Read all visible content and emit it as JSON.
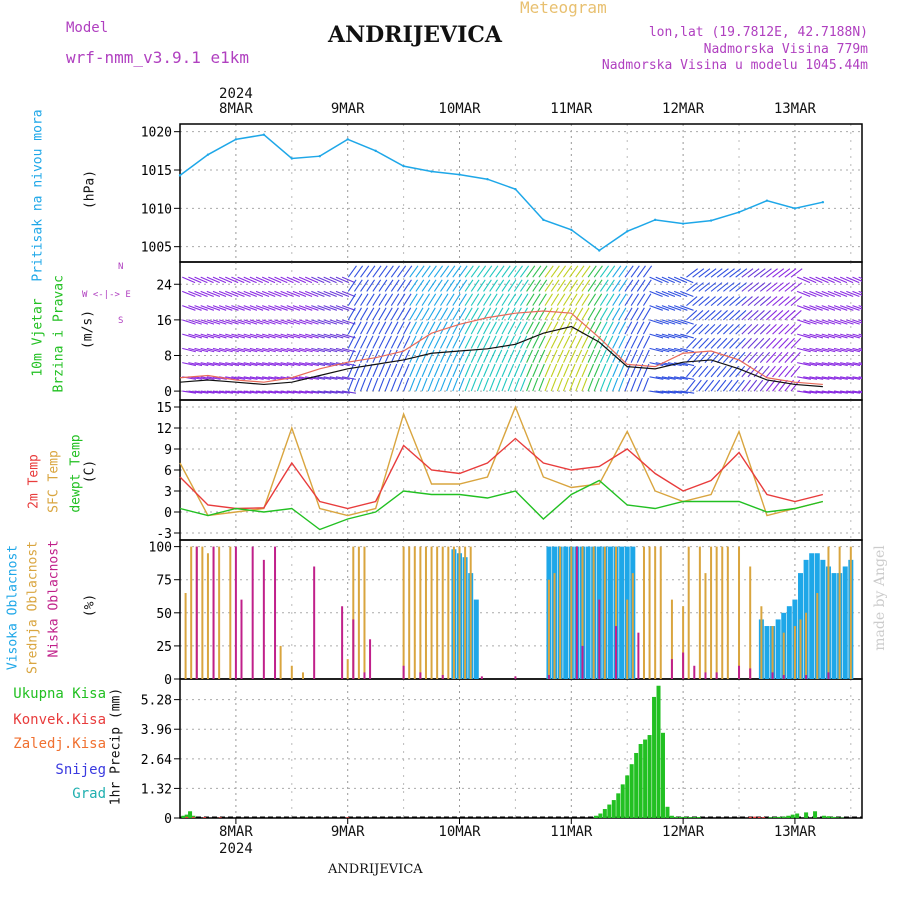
{
  "header": {
    "model_label": "Model",
    "model_name": "wrf-nmm_v3.9.1 e1km",
    "title": "ANDRIJEVICA",
    "meteogram": "Meteogram",
    "lonlat": "lon,lat (19.7812E, 42.7188N)",
    "altitude": "Nadmorska Visina 779m",
    "model_altitude": "Nadmorska Visina u modelu 1045.44m",
    "year_top": "2024",
    "year_bottom": "2024",
    "footer_title": "ANDRIJEVICA",
    "watermark": "made by Angel"
  },
  "colors": {
    "pressure": "#1ea7e8",
    "temp2m": "#e83c3c",
    "sfc": "#d9a53f",
    "dewpt": "#22c022",
    "high_cloud": "#1ea7e8",
    "mid_cloud": "#d9a53f",
    "low_cloud": "#c0208a",
    "total_precip": "#22c022",
    "conv_precip": "#e83c3c",
    "frozen": "#f07030",
    "snow": "#3a3ae0",
    "hail": "#20b0b0",
    "wind_label": "#b040c0"
  },
  "chart_data": [
    {
      "type": "line",
      "name": "pressure",
      "title": "",
      "ylabel": "(hPa)",
      "side_label": "Pritisak na nivou mora",
      "ylim": [
        1003,
        1021
      ],
      "yticks": [
        1005,
        1010,
        1015,
        1020
      ],
      "x_days": [
        0.0,
        0.25,
        0.5,
        0.75,
        1.0,
        1.25,
        1.5,
        1.75,
        2.0,
        2.25,
        2.5,
        2.75,
        3.0,
        3.25,
        3.5,
        3.75,
        4.0,
        4.25,
        4.5,
        4.75,
        5.0,
        5.25,
        5.5,
        5.75
      ],
      "x_unit": "days from 2024-03-07 12:00",
      "values": [
        1014.3,
        1017.0,
        1019.0,
        1019.6,
        1016.5,
        1016.8,
        1019.0,
        1017.5,
        1015.5,
        1014.8,
        1014.4,
        1013.8,
        1012.5,
        1008.5,
        1007.2,
        1004.5,
        1007.0,
        1008.5,
        1008.0,
        1008.4,
        1009.5,
        1011.0,
        1010.0,
        1010.8
      ]
    },
    {
      "type": "line",
      "name": "wind",
      "ylabel": "(m/s)",
      "side_label_1": "10m Vjetar",
      "side_label_2": "Brzina i Pravac",
      "compass": "W <-|-> E",
      "ylim": [
        -2,
        29
      ],
      "yticks": [
        0,
        8,
        16,
        24
      ],
      "x_days": [
        0.0,
        0.25,
        0.5,
        0.75,
        1.0,
        1.25,
        1.5,
        1.75,
        2.0,
        2.25,
        2.5,
        2.75,
        3.0,
        3.25,
        3.5,
        3.75,
        4.0,
        4.25,
        4.5,
        4.75,
        5.0,
        5.25,
        5.5,
        5.75
      ],
      "x_unit": "days from 2024-03-07 12:00",
      "series": [
        {
          "name": "speed",
          "values": [
            2.0,
            2.5,
            2.0,
            1.5,
            2.0,
            3.5,
            5.0,
            6.0,
            7.0,
            8.5,
            9.0,
            9.5,
            10.5,
            13.0,
            14.5,
            11.0,
            5.5,
            5.0,
            6.5,
            7.0,
            5.0,
            2.5,
            1.5,
            1.0
          ]
        },
        {
          "name": "gust",
          "values": [
            3.0,
            3.5,
            2.5,
            2.0,
            3.0,
            5.0,
            6.5,
            7.5,
            9.0,
            13.0,
            15.0,
            16.5,
            17.5,
            18.0,
            17.5,
            12.0,
            6.0,
            5.5,
            8.5,
            9.0,
            7.0,
            3.0,
            2.0,
            1.5
          ]
        }
      ]
    },
    {
      "type": "line",
      "name": "temperature",
      "ylabel": "(C)",
      "side_label_1": "2m Temp",
      "side_label_2": "SFC Temp",
      "side_label_3": "dewpt Temp",
      "ylim": [
        -4,
        16
      ],
      "yticks": [
        -3,
        0,
        3,
        6,
        9,
        12,
        15
      ],
      "x_days": [
        0.0,
        0.25,
        0.5,
        0.75,
        1.0,
        1.25,
        1.5,
        1.75,
        2.0,
        2.25,
        2.5,
        2.75,
        3.0,
        3.25,
        3.5,
        3.75,
        4.0,
        4.25,
        4.5,
        4.75,
        5.0,
        5.25,
        5.5,
        5.75
      ],
      "x_unit": "days from 2024-03-07 12:00",
      "series": [
        {
          "name": "2m Temp",
          "values": [
            5.0,
            1.0,
            0.5,
            0.6,
            7.0,
            1.5,
            0.5,
            1.5,
            9.5,
            6.0,
            5.5,
            7.0,
            10.5,
            7.0,
            6.0,
            6.5,
            9.0,
            5.5,
            3.0,
            4.5,
            8.5,
            2.5,
            1.5,
            2.5
          ]
        },
        {
          "name": "SFC Temp",
          "values": [
            7.0,
            -0.5,
            0.0,
            0.5,
            12.0,
            0.5,
            -0.5,
            0.5,
            14.0,
            4.0,
            4.0,
            5.0,
            15.0,
            5.0,
            3.5,
            4.0,
            11.5,
            3.0,
            1.5,
            2.5,
            11.5,
            -0.5,
            0.5,
            1.5
          ]
        },
        {
          "name": "dewpt Temp",
          "values": [
            0.5,
            -0.5,
            0.5,
            0.0,
            0.5,
            -2.5,
            -1.0,
            0.0,
            3.0,
            2.5,
            2.5,
            2.0,
            3.0,
            -1.0,
            2.5,
            4.5,
            1.0,
            0.5,
            1.5,
            1.5,
            1.5,
            0.0,
            0.5,
            1.5
          ]
        }
      ]
    },
    {
      "type": "bar",
      "name": "cloud",
      "ylabel": "(%)",
      "side_label_1": "Visoka Oblacnost",
      "side_label_2": "Srednja Oblacnost",
      "side_label_3": "Niska Oblacnost",
      "ylim": [
        0,
        105
      ],
      "yticks": [
        0,
        25,
        50,
        75,
        100
      ],
      "x_unit": "days from 2024-03-07 12:00",
      "series": [
        {
          "name": "Visoka",
          "x": [
            2.45,
            2.5,
            2.55,
            2.6,
            2.65,
            3.3,
            3.35,
            3.4,
            3.45,
            3.5,
            3.55,
            3.6,
            3.65,
            3.7,
            3.75,
            3.8,
            3.85,
            3.9,
            3.95,
            4.0,
            4.05,
            5.2,
            5.25,
            5.3,
            5.35,
            5.4,
            5.45,
            5.5,
            5.55,
            5.6,
            5.65,
            5.7,
            5.75,
            5.8,
            5.85,
            5.9,
            5.95,
            6.0
          ],
          "values": [
            98,
            95,
            92,
            80,
            60,
            100,
            100,
            100,
            100,
            100,
            100,
            100,
            100,
            100,
            100,
            100,
            100,
            100,
            100,
            100,
            100,
            45,
            40,
            40,
            45,
            50,
            55,
            60,
            80,
            90,
            95,
            95,
            90,
            85,
            80,
            80,
            85,
            90
          ]
        },
        {
          "name": "Srednja",
          "x": [
            0.05,
            0.1,
            0.15,
            0.2,
            0.25,
            0.3,
            0.35,
            0.45,
            0.9,
            1.0,
            1.1,
            1.5,
            1.55,
            1.6,
            1.65,
            2.0,
            2.05,
            2.1,
            2.15,
            2.2,
            2.25,
            2.3,
            2.35,
            2.4,
            2.45,
            2.5,
            2.55,
            2.6,
            3.3,
            3.35,
            3.4,
            3.5,
            3.6,
            3.7,
            3.8,
            3.9,
            4.0,
            4.05,
            4.15,
            4.2,
            4.25,
            4.3,
            4.4,
            4.5,
            4.55,
            4.65,
            4.7,
            4.75,
            4.8,
            4.85,
            4.9,
            5.0,
            5.1,
            5.2,
            5.3,
            5.4,
            5.5,
            5.55,
            5.6,
            5.7,
            5.8,
            5.9,
            6.0
          ],
          "values": [
            65,
            100,
            100,
            100,
            95,
            100,
            100,
            100,
            25,
            10,
            5,
            15,
            100,
            100,
            100,
            100,
            100,
            100,
            100,
            100,
            100,
            100,
            100,
            100,
            100,
            100,
            100,
            100,
            75,
            80,
            100,
            100,
            100,
            100,
            100,
            100,
            60,
            80,
            100,
            100,
            100,
            100,
            60,
            55,
            100,
            100,
            80,
            100,
            100,
            100,
            100,
            100,
            85,
            55,
            40,
            35,
            40,
            45,
            50,
            65,
            100,
            100,
            100
          ]
        },
        {
          "name": "Niska",
          "x": [
            0.15,
            0.3,
            0.5,
            0.55,
            0.65,
            0.75,
            0.85,
            1.2,
            1.45,
            1.55,
            1.65,
            1.7,
            2.0,
            2.15,
            2.35,
            2.7,
            3.0,
            3.3,
            3.55,
            3.6,
            3.75,
            3.9,
            4.1,
            4.4,
            4.5,
            4.6,
            4.7,
            4.8,
            5.0,
            5.1,
            5.3,
            5.4,
            5.6,
            5.8
          ],
          "values": [
            100,
            100,
            100,
            60,
            100,
            90,
            100,
            85,
            55,
            45,
            5,
            30,
            10,
            5,
            3,
            2,
            2,
            3,
            100,
            25,
            60,
            40,
            35,
            15,
            20,
            10,
            5,
            5,
            10,
            8,
            5,
            3,
            3,
            5
          ]
        }
      ]
    },
    {
      "type": "bar",
      "name": "precip",
      "ylabel": "1hr Precip (mm)",
      "side_label_1": "Ukupna Kisa",
      "side_label_2": "Konvek.Kisa",
      "side_label_3": "Zaledj.Kisa",
      "side_label_4": "Snijeg",
      "side_label_5": "Grad",
      "ylim": [
        0,
        6.2
      ],
      "yticks": [
        0,
        1.32,
        2.64,
        3.96,
        5.28
      ],
      "ytick_labels": [
        "0",
        "1.32",
        "2.64",
        "3.96",
        "5.28"
      ],
      "x_unit": "days from 2024-03-07 12:00",
      "series": [
        {
          "name": "Ukupna Kisa",
          "x": [
            0.03,
            0.06,
            0.09,
            0.12,
            3.72,
            3.76,
            3.8,
            3.84,
            3.88,
            3.92,
            3.96,
            4.0,
            4.04,
            4.08,
            4.12,
            4.16,
            4.2,
            4.24,
            4.28,
            4.32,
            4.36,
            4.4,
            4.44,
            4.48,
            4.52,
            4.56,
            4.6,
            4.64,
            5.28,
            5.32,
            5.36,
            5.4,
            5.44,
            5.48,
            5.52,
            5.6,
            5.68,
            5.76,
            5.8,
            5.84,
            5.88,
            5.92
          ],
          "values": [
            0.1,
            0.15,
            0.3,
            0.1,
            0.1,
            0.2,
            0.4,
            0.6,
            0.8,
            1.1,
            1.5,
            1.9,
            2.4,
            2.9,
            3.3,
            3.5,
            3.7,
            5.4,
            5.9,
            3.8,
            0.5,
            0.1,
            0.05,
            0.05,
            0.05,
            0.04,
            0.04,
            0.04,
            0.03,
            0.04,
            0.05,
            0.06,
            0.1,
            0.15,
            0.2,
            0.25,
            0.3,
            0.1,
            0.08,
            0.05,
            0.03,
            0.02
          ]
        },
        {
          "name": "Konvek.Kisa",
          "x": [
            0.06,
            0.12,
            0.22,
            0.36,
            1.5,
            5.1,
            5.14,
            5.18,
            5.22
          ],
          "values": [
            0.05,
            0.05,
            0.04,
            0.03,
            0.03,
            0.05,
            0.06,
            0.05,
            0.04
          ]
        }
      ]
    }
  ],
  "x_axis": {
    "day_labels": [
      "8MAR",
      "9MAR",
      "10MAR",
      "11MAR",
      "12MAR",
      "13MAR"
    ],
    "day_offsets": [
      0.5,
      1.5,
      2.5,
      3.5,
      4.5,
      5.5
    ],
    "xlim": [
      0,
      6.1
    ]
  },
  "panels": {
    "pressure": {
      "ylabel": "(hPa)",
      "side": "Pritisak na nivou mora"
    },
    "wind": {
      "ylabel": "(m/s)",
      "side1": "10m Vjetar",
      "side2": "Brzina i Pravac",
      "compass": "W <-|-> E",
      "compass2": "N",
      "compass3": "S"
    },
    "temp": {
      "ylabel": "(C)",
      "side1": "2m Temp",
      "side2": "SFC Temp",
      "side3": "dewpt Temp"
    },
    "cloud": {
      "ylabel": "(%)",
      "side1": "Visoka Oblacnost",
      "side2": "Srednja Oblacnost",
      "side3": "Niska Oblacnost"
    },
    "precip": {
      "ylabel": "1hr Precip (mm)",
      "legend": [
        "Ukupna Kisa",
        "Konvek.Kisa",
        "Zaledj.Kisa",
        "Snijeg",
        "Grad"
      ]
    }
  }
}
